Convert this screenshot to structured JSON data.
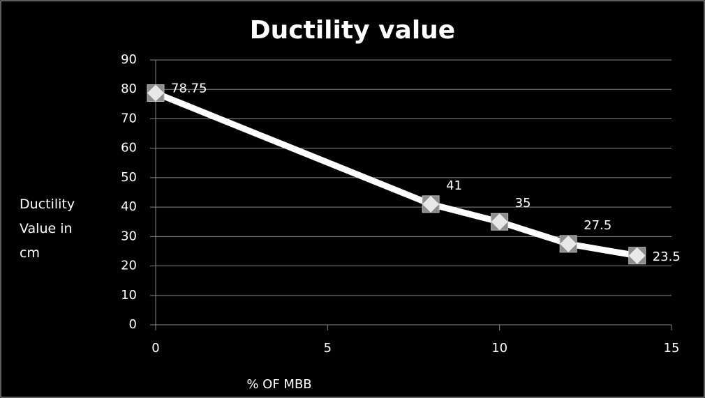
{
  "chart_data": {
    "type": "line",
    "title": "Ductility value",
    "x_label": "% OF MBB",
    "y_label": "Ductility Value in cm",
    "x": [
      0,
      8,
      10,
      12,
      14
    ],
    "series": [
      {
        "name": "Ductility value",
        "color": "#ffffff",
        "values": [
          78.75,
          41,
          35,
          27.5,
          23.5
        ]
      }
    ],
    "xlim": [
      0,
      15
    ],
    "xticks": [
      0,
      5,
      10,
      15
    ],
    "ylim": [
      0,
      90
    ],
    "yticks": [
      0,
      10,
      20,
      30,
      40,
      50,
      60,
      70,
      80,
      90
    ],
    "grid": true,
    "data_labels": true
  }
}
